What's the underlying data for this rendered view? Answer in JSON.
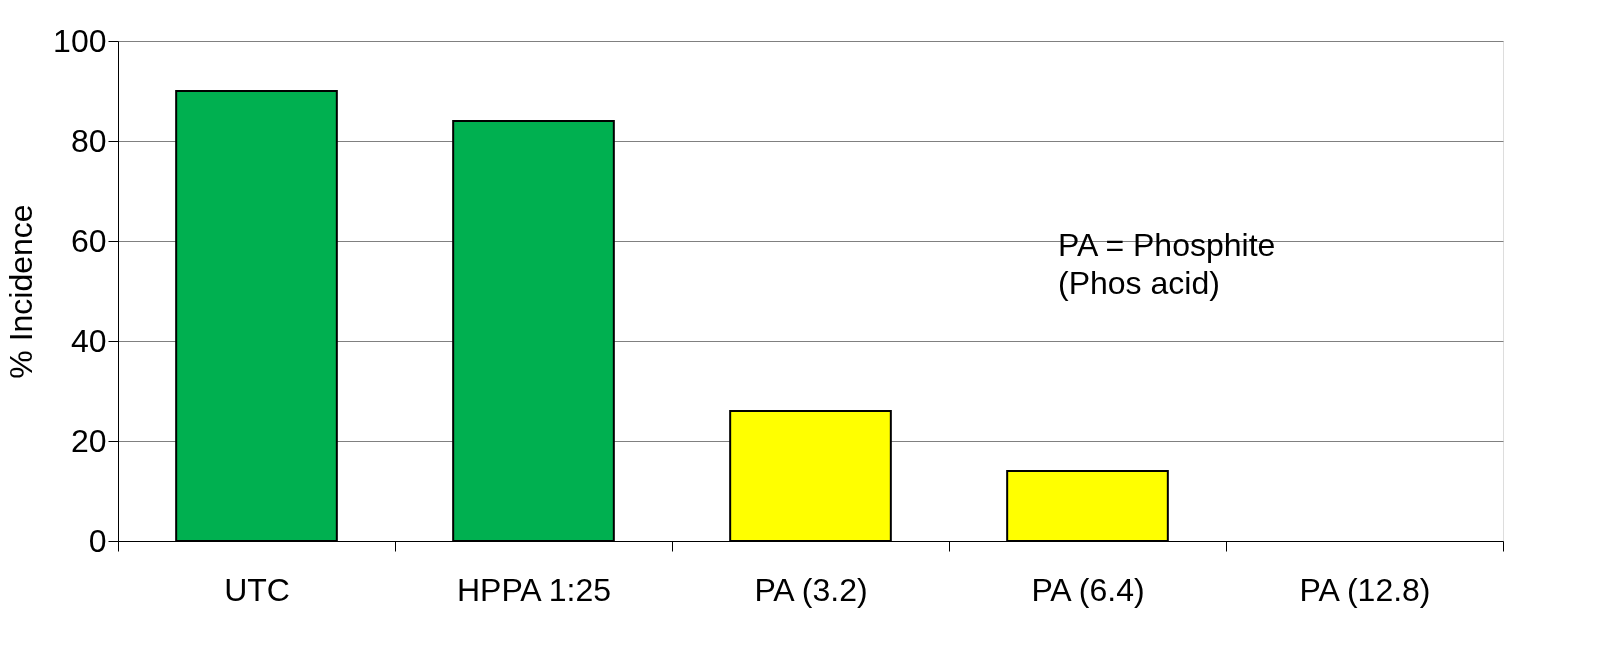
{
  "chart_data": {
    "type": "bar",
    "ylabel": "% Incidence",
    "categories": [
      "UTC",
      "HPPA 1:25",
      "PA  (3.2)",
      "PA (6.4)",
      "PA (12.8)"
    ],
    "values": [
      90,
      84,
      26,
      14,
      0
    ],
    "colors": [
      "#00b050",
      "#00b050",
      "#ffff00",
      "#ffff00",
      "#ffff00"
    ],
    "ylim": [
      0,
      100
    ],
    "yticks": [
      0,
      20,
      40,
      60,
      80,
      100
    ],
    "grid": "y",
    "annotations": [
      "PA = Phosphite\n(Phos acid)"
    ]
  }
}
